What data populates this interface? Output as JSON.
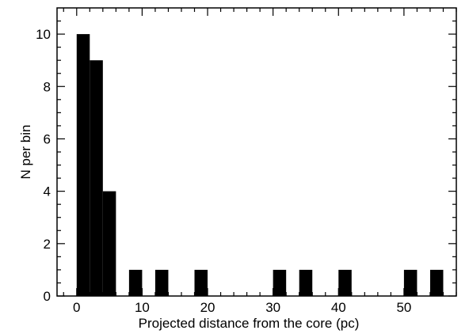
{
  "chart_data": {
    "type": "bar",
    "title": "",
    "xlabel": "Projected distance from the core (pc)",
    "ylabel": "N per bin",
    "xlim": [
      -3,
      58
    ],
    "ylim": [
      0,
      11
    ],
    "grid": false,
    "bar_color": "#000000",
    "bin_width": 2.0,
    "x_ticks": [
      0,
      10,
      20,
      30,
      40,
      50
    ],
    "y_ticks": [
      0,
      2,
      4,
      6,
      8,
      10
    ],
    "bins": [
      {
        "start": 0,
        "end": 2,
        "count": 10
      },
      {
        "start": 2,
        "end": 4,
        "count": 9
      },
      {
        "start": 4,
        "end": 6,
        "count": 4
      },
      {
        "start": 8,
        "end": 10,
        "count": 1
      },
      {
        "start": 12,
        "end": 14,
        "count": 1
      },
      {
        "start": 18,
        "end": 20,
        "count": 1
      },
      {
        "start": 30,
        "end": 32,
        "count": 1
      },
      {
        "start": 34,
        "end": 36,
        "count": 1
      },
      {
        "start": 40,
        "end": 42,
        "count": 1
      },
      {
        "start": 50,
        "end": 52,
        "count": 1
      },
      {
        "start": 54,
        "end": 56,
        "count": 1
      }
    ]
  }
}
